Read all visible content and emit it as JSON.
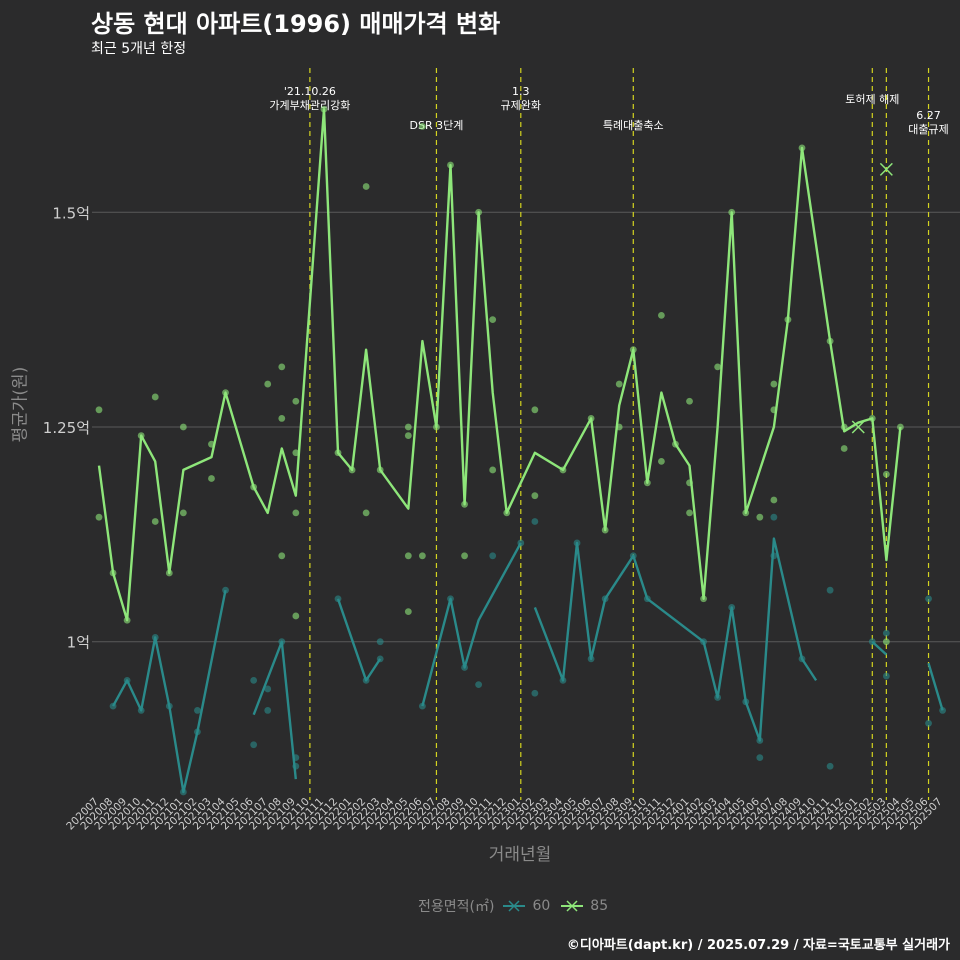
{
  "title": "상동 현대 아파트(1996) 매매가격 변화",
  "subtitle": "최근 5개년 한정",
  "caption": "©디아파트(dapt.kr) / 2025.07.29 / 자료=국토교통부 실거래가",
  "colors": {
    "background": "#2b2b2c",
    "grid": "#5a5a5a",
    "event_line": "#d4d420",
    "series_60": "#2a8a8a",
    "series_85": "#8ee67a"
  },
  "chart_data": {
    "type": "line",
    "xlabel": "거래년월",
    "ylabel": "평균가(원)",
    "ylim": [
      0.825,
      1.675
    ],
    "y_ticks": [
      {
        "value": 1.0,
        "label": "1억"
      },
      {
        "value": 1.25,
        "label": "1.25억"
      },
      {
        "value": 1.5,
        "label": "1.5억"
      }
    ],
    "x": [
      "202007",
      "202008",
      "202009",
      "202010",
      "202011",
      "202012",
      "202101",
      "202102",
      "202103",
      "202104",
      "202105",
      "202106",
      "202107",
      "202108",
      "202109",
      "202110",
      "202111",
      "202112",
      "202201",
      "202202",
      "202203",
      "202204",
      "202205",
      "202206",
      "202207",
      "202208",
      "202209",
      "202210",
      "202211",
      "202212",
      "202301",
      "202302",
      "202303",
      "202304",
      "202305",
      "202306",
      "202307",
      "202308",
      "202309",
      "202310",
      "202311",
      "202312",
      "202401",
      "202402",
      "202403",
      "202404",
      "202405",
      "202406",
      "202407",
      "202408",
      "202409",
      "202410",
      "202411",
      "202412",
      "202501",
      "202502",
      "202503",
      "202504",
      "202505",
      "202506",
      "202507"
    ],
    "legend_title": "전용면적(㎡)",
    "legend_position": "bottom",
    "grid": true,
    "events": [
      {
        "x": "202110",
        "label": "'21.10.26\n가계부채관리강화",
        "row": 1
      },
      {
        "x": "202207",
        "label": "DSR 3단계",
        "row": 2
      },
      {
        "x": "202301",
        "label": "1.3\n규제완화",
        "row": 1
      },
      {
        "x": "202309",
        "label": "특례대출축소",
        "row": 2
      },
      {
        "x": "202502",
        "label": "토허제 해제",
        "row": 0
      },
      {
        "x": "202503",
        "label": "",
        "row": 0
      },
      {
        "x": "202506",
        "label": "6.27\n대출규제",
        "row": 3
      }
    ],
    "series": [
      {
        "name": "60",
        "line": [
          [
            [
              1,
              0.925
            ],
            [
              2,
              0.955
            ],
            [
              3,
              0.92
            ],
            [
              4,
              1.005
            ],
            [
              5,
              0.925
            ],
            [
              6,
              0.825
            ],
            [
              7,
              0.895
            ],
            [
              9,
              1.06
            ]
          ],
          [
            [
              11,
              0.915
            ],
            [
              13,
              1.0
            ],
            [
              14,
              0.84
            ]
          ],
          [
            [
              17,
              1.05
            ],
            [
              19,
              0.955
            ],
            [
              20,
              0.98
            ]
          ],
          [
            [
              23,
              0.925
            ],
            [
              25,
              1.05
            ],
            [
              26,
              0.97
            ],
            [
              27,
              1.025
            ],
            [
              30,
              1.115
            ]
          ],
          [
            [
              31,
              1.04
            ],
            [
              33,
              0.955
            ],
            [
              34,
              1.115
            ],
            [
              35,
              0.98
            ],
            [
              36,
              1.05
            ],
            [
              38,
              1.1
            ],
            [
              39,
              1.05
            ],
            [
              43,
              1.0
            ],
            [
              44,
              0.935
            ],
            [
              45,
              1.04
            ],
            [
              46,
              0.93
            ],
            [
              47,
              0.885
            ],
            [
              48,
              1.12
            ],
            [
              50,
              0.98
            ],
            [
              51,
              0.955
            ]
          ],
          [
            [
              55,
              1.0
            ],
            [
              56,
              0.985
            ]
          ],
          [
            [
              59,
              0.975
            ],
            [
              60,
              0.92
            ]
          ]
        ],
        "points": [
          [
            1,
            0.925
          ],
          [
            2,
            0.955
          ],
          [
            3,
            0.92
          ],
          [
            4,
            1.005
          ],
          [
            5,
            0.925
          ],
          [
            6,
            0.825
          ],
          [
            7,
            0.895
          ],
          [
            7,
            0.92
          ],
          [
            9,
            1.06
          ],
          [
            11,
            0.955
          ],
          [
            11,
            0.88
          ],
          [
            12,
            0.945
          ],
          [
            12,
            0.92
          ],
          [
            13,
            1.0
          ],
          [
            14,
            0.865
          ],
          [
            14,
            0.855
          ],
          [
            17,
            1.05
          ],
          [
            19,
            0.955
          ],
          [
            20,
            1.0
          ],
          [
            20,
            0.98
          ],
          [
            23,
            0.925
          ],
          [
            25,
            1.05
          ],
          [
            26,
            0.97
          ],
          [
            27,
            0.95
          ],
          [
            28,
            1.1
          ],
          [
            30,
            1.115
          ],
          [
            31,
            1.14
          ],
          [
            31,
            0.94
          ],
          [
            33,
            0.955
          ],
          [
            34,
            1.115
          ],
          [
            35,
            0.98
          ],
          [
            36,
            1.05
          ],
          [
            38,
            1.1
          ],
          [
            39,
            1.05
          ],
          [
            43,
            1.0
          ],
          [
            44,
            0.935
          ],
          [
            45,
            1.04
          ],
          [
            46,
            0.93
          ],
          [
            47,
            0.885
          ],
          [
            47,
            0.865
          ],
          [
            48,
            1.145
          ],
          [
            48,
            1.1
          ],
          [
            50,
            0.98
          ],
          [
            52,
            0.855
          ],
          [
            52,
            1.06
          ],
          [
            55,
            1.0
          ],
          [
            56,
            0.96
          ],
          [
            56,
            1.01
          ],
          [
            59,
            1.05
          ],
          [
            59,
            0.905
          ],
          [
            60,
            0.92
          ]
        ]
      },
      {
        "name": "85",
        "line": [
          [
            [
              0,
              1.205
            ],
            [
              1,
              1.08
            ],
            [
              2,
              1.025
            ],
            [
              3,
              1.24
            ],
            [
              4,
              1.21
            ],
            [
              5,
              1.08
            ],
            [
              6,
              1.2
            ],
            [
              8,
              1.215
            ],
            [
              9,
              1.29
            ],
            [
              11,
              1.18
            ],
            [
              12,
              1.15
            ],
            [
              13,
              1.225
            ],
            [
              14,
              1.17
            ],
            [
              16,
              1.62
            ],
            [
              17,
              1.22
            ],
            [
              18,
              1.2
            ],
            [
              19,
              1.34
            ],
            [
              20,
              1.2
            ],
            [
              22,
              1.155
            ],
            [
              23,
              1.35
            ],
            [
              24,
              1.25
            ],
            [
              25,
              1.555
            ],
            [
              26,
              1.16
            ],
            [
              27,
              1.5
            ],
            [
              28,
              1.29
            ],
            [
              29,
              1.15
            ],
            [
              31,
              1.22
            ],
            [
              33,
              1.2
            ],
            [
              35,
              1.26
            ],
            [
              36,
              1.13
            ],
            [
              37,
              1.275
            ],
            [
              38,
              1.34
            ],
            [
              39,
              1.185
            ],
            [
              40,
              1.29
            ],
            [
              41,
              1.23
            ],
            [
              42,
              1.205
            ],
            [
              43,
              1.05
            ],
            [
              44,
              1.25
            ],
            [
              45,
              1.5
            ],
            [
              46,
              1.15
            ],
            [
              48,
              1.25
            ],
            [
              49,
              1.375
            ],
            [
              50,
              1.575
            ],
            [
              52,
              1.35
            ],
            [
              53,
              1.245
            ],
            [
              54,
              1.255
            ],
            [
              55,
              1.26
            ],
            [
              56,
              1.095
            ],
            [
              57,
              1.25
            ]
          ]
        ],
        "points": [
          [
            0,
            1.27
          ],
          [
            0,
            1.145
          ],
          [
            1,
            1.08
          ],
          [
            2,
            1.025
          ],
          [
            3,
            1.24
          ],
          [
            4,
            1.285
          ],
          [
            4,
            1.14
          ],
          [
            5,
            1.08
          ],
          [
            6,
            1.25
          ],
          [
            6,
            1.15
          ],
          [
            8,
            1.23
          ],
          [
            8,
            1.19
          ],
          [
            9,
            1.29
          ],
          [
            11,
            1.18
          ],
          [
            12,
            1.3
          ],
          [
            13,
            1.32
          ],
          [
            13,
            1.26
          ],
          [
            13,
            1.1
          ],
          [
            14,
            1.28
          ],
          [
            14,
            1.22
          ],
          [
            14,
            1.15
          ],
          [
            14,
            1.03
          ],
          [
            16,
            1.62
          ],
          [
            17,
            1.22
          ],
          [
            18,
            1.2
          ],
          [
            19,
            1.53
          ],
          [
            19,
            1.15
          ],
          [
            20,
            1.2
          ],
          [
            22,
            1.25
          ],
          [
            22,
            1.24
          ],
          [
            22,
            1.1
          ],
          [
            22,
            1.035
          ],
          [
            23,
            1.6
          ],
          [
            23,
            1.1
          ],
          [
            24,
            1.25
          ],
          [
            25,
            1.555
          ],
          [
            26,
            1.16
          ],
          [
            26,
            1.1
          ],
          [
            27,
            1.5
          ],
          [
            28,
            1.375
          ],
          [
            28,
            1.2
          ],
          [
            29,
            1.15
          ],
          [
            31,
            1.27
          ],
          [
            31,
            1.17
          ],
          [
            33,
            1.2
          ],
          [
            35,
            1.26
          ],
          [
            36,
            1.13
          ],
          [
            37,
            1.3
          ],
          [
            37,
            1.25
          ],
          [
            38,
            1.34
          ],
          [
            39,
            1.185
          ],
          [
            40,
            1.38
          ],
          [
            40,
            1.21
          ],
          [
            41,
            1.23
          ],
          [
            42,
            1.28
          ],
          [
            42,
            1.185
          ],
          [
            42,
            1.15
          ],
          [
            43,
            1.05
          ],
          [
            44,
            1.32
          ],
          [
            45,
            1.5
          ],
          [
            46,
            1.15
          ],
          [
            47,
            1.145
          ],
          [
            48,
            1.3
          ],
          [
            48,
            1.27
          ],
          [
            48,
            1.165
          ],
          [
            49,
            1.375
          ],
          [
            50,
            1.575
          ],
          [
            52,
            1.35
          ],
          [
            53,
            1.25
          ],
          [
            53,
            1.225
          ],
          [
            55,
            1.26
          ],
          [
            56,
            1.195
          ],
          [
            56,
            1.0
          ],
          [
            57,
            1.25
          ]
        ],
        "cross_points": [
          [
            54,
            1.25
          ],
          [
            56,
            1.55
          ]
        ]
      }
    ]
  }
}
